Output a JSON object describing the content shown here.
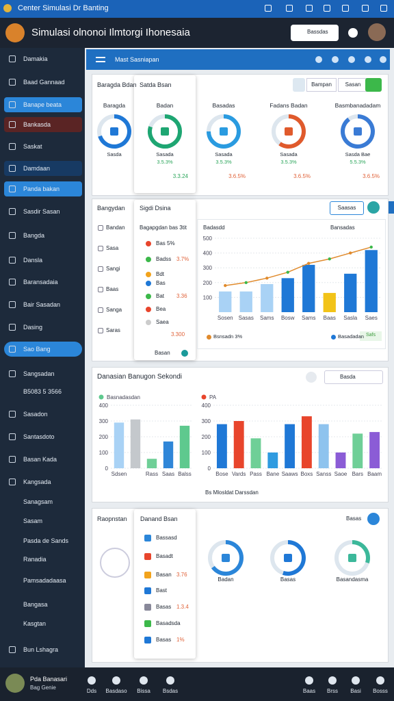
{
  "window": {
    "title": "Center Simulasi Dr Banting"
  },
  "header": {
    "title": "Simulasi olnonoi Ilmtorgi Ihonesaia",
    "search": "Bassdas"
  },
  "sidebar": {
    "items": [
      "Damakia",
      "Baad Gannaad",
      "Banape beata",
      "Bankasda",
      "Saskat",
      "Damdaan",
      "Panda bakan",
      "Sasdir Sasan",
      "Bangda",
      "Dansla",
      "Baransadaia",
      "Bair Sasadan",
      "Dasing",
      "Sao Bang",
      "Sangsadan",
      "B5083 5 3566",
      "Sasadon",
      "Santasdoto",
      "Basan Kada",
      "Kangsada",
      "Sanagsam",
      "Sasam",
      "Pasda de Sands",
      "Ranadia",
      "Pamsadadaasa",
      "Bangasa",
      "Kasgtan",
      "Bun Lshagra"
    ],
    "user": {
      "name": "Pda Banasari",
      "role": "Bag Genie"
    }
  },
  "toolbar": {
    "title": "Mast Sasniapan"
  },
  "overview": {
    "label": "Baragda Bdan",
    "card_title": "Satda Bsan",
    "filters": [
      "Bampan",
      "Sasan"
    ],
    "cards": [
      {
        "title": "Baragda",
        "caption": "Sasda"
      },
      {
        "title": "Badan",
        "caption": "Sasada",
        "value": "3.5.3%",
        "total": "3.3.24"
      },
      {
        "title": "Basadas",
        "caption": "Sasada",
        "value": "3.5.3%",
        "total": "3.6.5%"
      },
      {
        "title": "Fadans Badan",
        "caption": "Sasada",
        "value": "3.5.3%",
        "total": "3.6.5%"
      },
      {
        "title": "Basmbanadadam",
        "caption": "Sasda Bae",
        "value": "5.5.3%",
        "total": "3.6.5%"
      }
    ]
  },
  "analysis": {
    "label": "Bangydan",
    "side_items": [
      "Bandan",
      "Sasa",
      "Sangi",
      "Baas",
      "Sanga",
      "Saras"
    ],
    "card_title": "Sigdi Dsina",
    "list_title": "Bagapgdan bas 3tit",
    "list": [
      {
        "label": "Bas 5%"
      },
      {
        "label": "Badss",
        "value": "3.7%"
      },
      {
        "label": "Bdt"
      },
      {
        "label": "Bas"
      },
      {
        "label": "Bat",
        "value": "3.36"
      },
      {
        "label": "Bea"
      },
      {
        "label": "Saea"
      }
    ],
    "card_total": "3.300",
    "card_footer": "Basan",
    "button": "Saasas",
    "chart_title": "Badasdd",
    "chart_action": "Bansadas",
    "badge": "Safs"
  },
  "comparison": {
    "title": "Danasian Banugon Sekondi",
    "search": "Basda",
    "footer": "Bs Mlosldat Darssdan"
  },
  "report": {
    "label": "Raopnstan",
    "card_title": "Danand Bsan",
    "list": [
      {
        "label": "Bassasd"
      },
      {
        "label": "Basadt"
      },
      {
        "label": "Basan",
        "value": "3.76"
      },
      {
        "label": "Bast"
      },
      {
        "label": "Basas",
        "value": "1.3.4"
      },
      {
        "label": "Basadsda"
      },
      {
        "label": "Basas",
        "value": "1%"
      }
    ],
    "action": "Basas",
    "donuts": [
      "Badan",
      "Basas",
      "Basandasma"
    ]
  },
  "footer": {
    "left": [
      "Dds",
      "Basdaso",
      "Bissa",
      "Bsdas"
    ],
    "right": [
      "Baas",
      "Brss",
      "Basi",
      "Bosss"
    ]
  },
  "chart_data": [
    {
      "type": "bar",
      "title": "Badasdd",
      "categories": [
        "Sosen",
        "Sasas",
        "Sams",
        "Bosw",
        "Sams",
        "Baas",
        "Sasla",
        "Saes"
      ],
      "ylim": [
        0,
        500
      ],
      "yticks": [
        100,
        200,
        300,
        400,
        500
      ],
      "grid": true,
      "series": [
        {
          "name": "Basadadan",
          "type": "bar",
          "color": "#1f78d6",
          "colors": [
            "#a9d2f5",
            "#a9d2f5",
            "#a9d2f5",
            "#1f78d6",
            "#1f78d6",
            "#f2c318",
            "#1f78d6",
            "#1f78d6"
          ],
          "values": [
            140,
            140,
            190,
            230,
            320,
            130,
            260,
            420
          ]
        },
        {
          "name": "Bsnsadn 3%",
          "type": "line",
          "color": "#e08a2c",
          "values": [
            180,
            200,
            230,
            270,
            330,
            360,
            400,
            440
          ]
        }
      ]
    },
    {
      "type": "bar",
      "title": "Basnadasdan",
      "categories": [
        "Sdsen",
        null,
        "Rass",
        "Saas",
        "Balss"
      ],
      "ylim": [
        0,
        400
      ],
      "yticks": [
        0,
        100,
        200,
        300,
        400
      ],
      "grid": true,
      "series": [
        {
          "name": "Basnadasdan",
          "type": "bar",
          "color": "#2f86d8",
          "colors": [
            "#a9d2f5",
            "#c4c8cc",
            "#6fcf97",
            "#2f86d8",
            "#5ec98e"
          ],
          "values": [
            290,
            310,
            60,
            170,
            270
          ]
        }
      ]
    },
    {
      "type": "bar",
      "title": "PA",
      "categories": [
        "Bose",
        "Vards",
        "Pass",
        "Bane",
        "Saaws",
        "Boxs",
        "Sanss",
        "Saoe",
        "Bars",
        "Baam"
      ],
      "ylim": [
        0,
        400
      ],
      "yticks": [
        0,
        100,
        200,
        300,
        400
      ],
      "grid": true,
      "series": [
        {
          "name": "PA",
          "type": "bar",
          "color": "#1f78d6",
          "colors": [
            "#1f78d6",
            "#e8452c",
            "#6fcf97",
            "#2f9be0",
            "#1f78d6",
            "#e8452c",
            "#8ec3ee",
            "#8b5cd6",
            "#6fcf97",
            "#8b5cd6"
          ],
          "values": [
            280,
            300,
            190,
            100,
            280,
            330,
            280,
            100,
            220,
            230
          ]
        }
      ]
    }
  ]
}
